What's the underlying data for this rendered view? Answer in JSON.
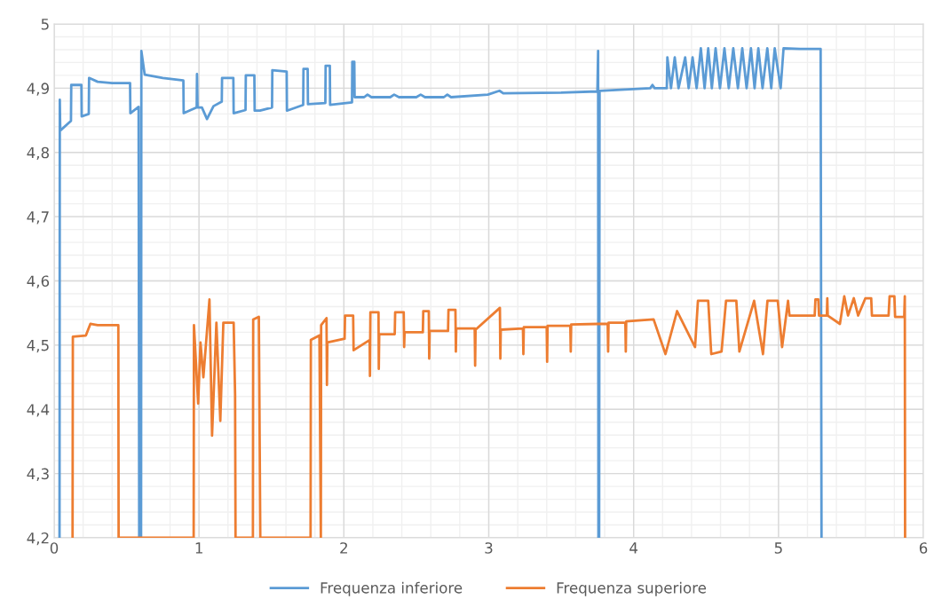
{
  "chart_data": {
    "type": "line",
    "xlim": [
      0,
      6
    ],
    "ylim": [
      4.2,
      5
    ],
    "xticks": [
      0,
      1,
      2,
      3,
      4,
      5,
      6
    ],
    "yticks": [
      {
        "value": 4.2,
        "label": "4,2"
      },
      {
        "value": 4.3,
        "label": "4,3"
      },
      {
        "value": 4.4,
        "label": "4,4"
      },
      {
        "value": 4.5,
        "label": "4,5"
      },
      {
        "value": 4.6,
        "label": "4,6"
      },
      {
        "value": 4.7,
        "label": "4,7"
      },
      {
        "value": 4.8,
        "label": "4,8"
      },
      {
        "value": 4.9,
        "label": "4,9"
      },
      {
        "value": 5,
        "label": "5"
      }
    ],
    "grid": true,
    "legend": "bottom",
    "marker": "none",
    "line_style": "solid",
    "series": [
      {
        "name": "Frequenza inferiore",
        "color": "#5b9bd5",
        "x": [
          0.037,
          0.039,
          0.042,
          0.116,
          0.118,
          0.188,
          0.19,
          0.239,
          0.241,
          0.3,
          0.4,
          0.524,
          0.526,
          0.583,
          0.587,
          0.6,
          0.602,
          0.625,
          0.75,
          0.892,
          0.894,
          0.984,
          0.986,
          0.99,
          1.02,
          1.055,
          1.1,
          1.157,
          1.159,
          1.237,
          1.239,
          1.321,
          1.323,
          1.382,
          1.384,
          1.421,
          1.504,
          1.506,
          1.605,
          1.607,
          1.719,
          1.721,
          1.75,
          1.752,
          1.872,
          1.874,
          1.903,
          1.905,
          2.056,
          2.058,
          2.072,
          2.074,
          2.14,
          2.163,
          2.19,
          2.32,
          2.347,
          2.38,
          2.5,
          2.53,
          2.56,
          2.69,
          2.714,
          2.74,
          2.994,
          3.074,
          3.1,
          3.5,
          3.75,
          3.755,
          3.757,
          3.762,
          3.765,
          4.115,
          4.13,
          4.145,
          4.229,
          4.233,
          4.258,
          4.284,
          4.31,
          4.356,
          4.38,
          4.407,
          4.435,
          4.464,
          4.49,
          4.515,
          4.54,
          4.566,
          4.596,
          4.627,
          4.657,
          4.688,
          4.72,
          4.75,
          4.78,
          4.81,
          4.835,
          4.861,
          4.89,
          4.923,
          4.95,
          4.974,
          5.015,
          5.035,
          5.15,
          5.291,
          5.297
        ],
        "values": [
          4.2,
          4.882,
          4.834,
          4.849,
          4.905,
          4.905,
          4.856,
          4.86,
          4.916,
          4.91,
          4.908,
          4.908,
          4.861,
          4.871,
          4.2,
          4.2,
          4.958,
          4.921,
          4.916,
          4.912,
          4.861,
          4.87,
          4.922,
          4.87,
          4.87,
          4.852,
          4.872,
          4.879,
          4.916,
          4.916,
          4.861,
          4.866,
          4.92,
          4.92,
          4.865,
          4.865,
          4.87,
          4.928,
          4.926,
          4.865,
          4.874,
          4.93,
          4.93,
          4.875,
          4.877,
          4.935,
          4.935,
          4.874,
          4.878,
          4.941,
          4.941,
          4.886,
          4.886,
          4.89,
          4.886,
          4.886,
          4.89,
          4.886,
          4.886,
          4.89,
          4.886,
          4.886,
          4.89,
          4.886,
          4.89,
          4.896,
          4.892,
          4.893,
          4.895,
          4.958,
          4.2,
          4.2,
          4.896,
          4.9,
          4.905,
          4.9,
          4.9,
          4.948,
          4.9,
          4.948,
          4.9,
          4.948,
          4.9,
          4.948,
          4.9,
          4.962,
          4.9,
          4.962,
          4.9,
          4.962,
          4.9,
          4.962,
          4.9,
          4.962,
          4.9,
          4.962,
          4.9,
          4.962,
          4.9,
          4.962,
          4.9,
          4.962,
          4.9,
          4.962,
          4.9,
          4.962,
          4.961,
          4.961,
          4.2
        ]
      },
      {
        "name": "Frequenza superiore",
        "color": "#ed7d31",
        "x": [
          0.127,
          0.129,
          0.219,
          0.25,
          0.3,
          0.443,
          0.445,
          0.963,
          0.965,
          0.994,
          1.01,
          1.03,
          1.072,
          1.09,
          1.12,
          1.147,
          1.168,
          1.239,
          1.249,
          1.252,
          1.372,
          1.374,
          1.413,
          1.416,
          1.423,
          1.77,
          1.772,
          1.831,
          1.841,
          1.843,
          1.88,
          1.883,
          1.886,
          2.005,
          2.008,
          2.064,
          2.067,
          2.178,
          2.18,
          2.183,
          2.239,
          2.241,
          2.244,
          2.351,
          2.354,
          2.413,
          2.416,
          2.419,
          2.545,
          2.548,
          2.586,
          2.589,
          2.592,
          2.719,
          2.722,
          2.77,
          2.773,
          2.776,
          2.903,
          2.906,
          2.909,
          3.077,
          3.08,
          3.083,
          3.236,
          3.239,
          3.242,
          3.4,
          3.403,
          3.406,
          3.563,
          3.566,
          3.569,
          3.75,
          3.821,
          3.824,
          3.827,
          3.943,
          3.946,
          3.949,
          4.138,
          4.22,
          4.3,
          4.424,
          4.444,
          4.515,
          4.536,
          4.607,
          4.638,
          4.709,
          4.73,
          4.832,
          4.893,
          4.924,
          4.995,
          5.025,
          5.066,
          5.076,
          5.25,
          5.255,
          5.275,
          5.28,
          5.334,
          5.337,
          5.34,
          5.424,
          5.454,
          5.48,
          5.52,
          5.55,
          5.6,
          5.64,
          5.645,
          5.76,
          5.767,
          5.8,
          5.805,
          5.868,
          5.872,
          5.874
        ],
        "values": [
          4.2,
          4.513,
          4.515,
          4.533,
          4.531,
          4.531,
          4.2,
          4.2,
          4.531,
          4.409,
          4.504,
          4.45,
          4.571,
          4.359,
          4.535,
          4.382,
          4.535,
          4.535,
          4.423,
          4.2,
          4.2,
          4.54,
          4.544,
          4.445,
          4.2,
          4.2,
          4.508,
          4.515,
          4.2,
          4.531,
          4.542,
          4.438,
          4.504,
          4.51,
          4.546,
          4.546,
          4.492,
          4.508,
          4.452,
          4.551,
          4.551,
          4.463,
          4.517,
          4.517,
          4.551,
          4.551,
          4.497,
          4.52,
          4.52,
          4.553,
          4.553,
          4.479,
          4.522,
          4.522,
          4.555,
          4.555,
          4.49,
          4.526,
          4.526,
          4.468,
          4.524,
          4.558,
          4.479,
          4.524,
          4.526,
          4.486,
          4.528,
          4.528,
          4.474,
          4.53,
          4.53,
          4.49,
          4.532,
          4.533,
          4.533,
          4.49,
          4.535,
          4.535,
          4.49,
          4.537,
          4.54,
          4.486,
          4.553,
          4.497,
          4.569,
          4.569,
          4.486,
          4.49,
          4.569,
          4.569,
          4.49,
          4.569,
          4.486,
          4.569,
          4.569,
          4.497,
          4.569,
          4.546,
          4.546,
          4.571,
          4.571,
          4.546,
          4.546,
          4.573,
          4.546,
          4.533,
          4.576,
          4.546,
          4.573,
          4.546,
          4.573,
          4.573,
          4.546,
          4.546,
          4.576,
          4.576,
          4.544,
          4.544,
          4.576,
          4.2
        ]
      }
    ]
  }
}
